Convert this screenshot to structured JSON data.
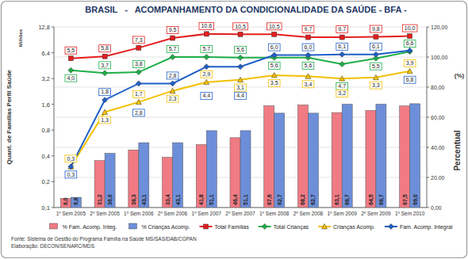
{
  "chart_data": {
    "type": "bar",
    "title": "BRASIL   -   ACOMPANHAMENTO DA CONDICIONALIDADE DA SAÚDE - BFA -",
    "ylabel": "Quant. de Famílias Perfil Saúde",
    "yunit": "Milhões",
    "y2label": "Percentual",
    "y2unit": "(%)",
    "annotations": [
      "Fonte: Sistema de Gestão do Programa Família na Saúde MS/SAS/DAB/CGPAN",
      "Elaboração: DECON/SENARC/MDS"
    ],
    "categories": [
      "1º Sem 2005",
      "2º Sem 2005",
      "1º Sem 2006",
      "2º Sem 2006",
      "1º Sem 2007",
      "2º Sem 2007",
      "1º Sem 2008",
      "2º Sem 2008",
      "1º Sem 2009",
      "2º Sem 2009",
      "1º Sem 2010"
    ],
    "log": "y",
    "ylim": [
      0.1,
      12.8
    ],
    "yticks": [
      {
        "value": 0.1,
        "label": "0,1"
      },
      {
        "value": 0.2,
        "label": "0,2"
      },
      {
        "value": 0.4,
        "label": "0,4"
      },
      {
        "value": 0.8,
        "label": "0,8"
      },
      {
        "value": 1.6,
        "label": "1,6"
      },
      {
        "value": 3.2,
        "label": "3,2"
      },
      {
        "value": 6.4,
        "label": "6,4"
      },
      {
        "value": 12.8,
        "label": "12,8"
      }
    ],
    "y2lim": [
      0,
      120
    ],
    "y2ticks": [
      {
        "value": 0,
        "label": "0,00"
      },
      {
        "value": 20,
        "label": "20,00"
      },
      {
        "value": 40,
        "label": "40,00"
      },
      {
        "value": 60,
        "label": "60,00"
      },
      {
        "value": 80,
        "label": "80,00"
      },
      {
        "value": 100,
        "label": "100,00"
      },
      {
        "value": 120,
        "label": "120,00"
      }
    ],
    "grid": true,
    "legend": "bottom",
    "data_labels": true,
    "series": [
      {
        "name": "% Fam. Acomp. Integ.",
        "type": "bar",
        "axis": "y2",
        "color": "#f07b84",
        "values": [
          6.0,
          31.2,
          38.3,
          33.4,
          41.8,
          46.4,
          67.6,
          68.2,
          63.1,
          64.5,
          67.5
        ],
        "value_labels": [
          "6,0",
          "31,2",
          "38,3",
          "33,4",
          "41,8",
          "46,4",
          "67,6",
          "68,2",
          "63,1",
          "64,5",
          "67,5"
        ]
      },
      {
        "name": "% Crianças Acomp.",
        "type": "bar",
        "axis": "y2",
        "color": "#6d8fd9",
        "values": [
          6.8,
          36.0,
          43.1,
          43.1,
          51.1,
          51.1,
          62.7,
          62.7,
          68.7,
          68.7,
          69.0
        ],
        "value_labels": [
          "6,8",
          "36,0",
          "43,1",
          "43,1",
          "51,1",
          "51,1",
          "62,7",
          "62,7",
          "68,7",
          "68,7",
          "69,0"
        ]
      },
      {
        "name": "Total Famílias",
        "type": "line",
        "color": "#e41e1e",
        "marker": "square",
        "values": [
          5.5,
          5.8,
          7.3,
          9.5,
          10.6,
          10.5,
          10.5,
          9.7,
          9.7,
          9.8,
          10.0
        ],
        "value_labels": [
          "5,5",
          "5,8",
          "7,3",
          "9,5",
          "10,6",
          "10,5",
          "10,5",
          "9,7",
          "9,7",
          "9,8",
          "10,0"
        ]
      },
      {
        "name": "Total Crianças",
        "type": "line",
        "color": "#1fae48",
        "marker": "diamond",
        "values": [
          4.0,
          3.7,
          3.8,
          5.7,
          5.7,
          5.6,
          5.6,
          5.6,
          4.7,
          5.5,
          6.6
        ],
        "value_labels": [
          "4,0",
          "3,7",
          "3,8",
          "5,7",
          "5,7",
          "5,6",
          "5,6",
          "5,6",
          "4,7",
          "5,5",
          "6,6"
        ]
      },
      {
        "name": "Crianças Acomp.",
        "type": "line",
        "color": "#f2c100",
        "marker": "triangle",
        "values": [
          0.3,
          1.3,
          1.7,
          2.3,
          2.9,
          3.1,
          3.5,
          3.4,
          3.2,
          3.3,
          3.9
        ],
        "value_labels": [
          "0,3",
          "1,3",
          "1,7",
          "2,3",
          "2,9",
          "3,1",
          "3,5",
          "3,4",
          "3,2",
          "3,3",
          "3,9"
        ]
      },
      {
        "name": "Fam. Acomp. Integral",
        "type": "line",
        "color": "#1f5fc8",
        "marker": "diamond",
        "values": [
          0.3,
          1.8,
          2.8,
          2.8,
          4.4,
          4.4,
          6.0,
          6.0,
          6.1,
          6.1,
          6.8
        ],
        "value_labels": [
          "0,3",
          "1,8",
          "2,8",
          "2,8",
          "4,4",
          "4,4",
          "6,0",
          "6,0",
          "6,1",
          "6,1",
          "6,8"
        ]
      }
    ]
  }
}
